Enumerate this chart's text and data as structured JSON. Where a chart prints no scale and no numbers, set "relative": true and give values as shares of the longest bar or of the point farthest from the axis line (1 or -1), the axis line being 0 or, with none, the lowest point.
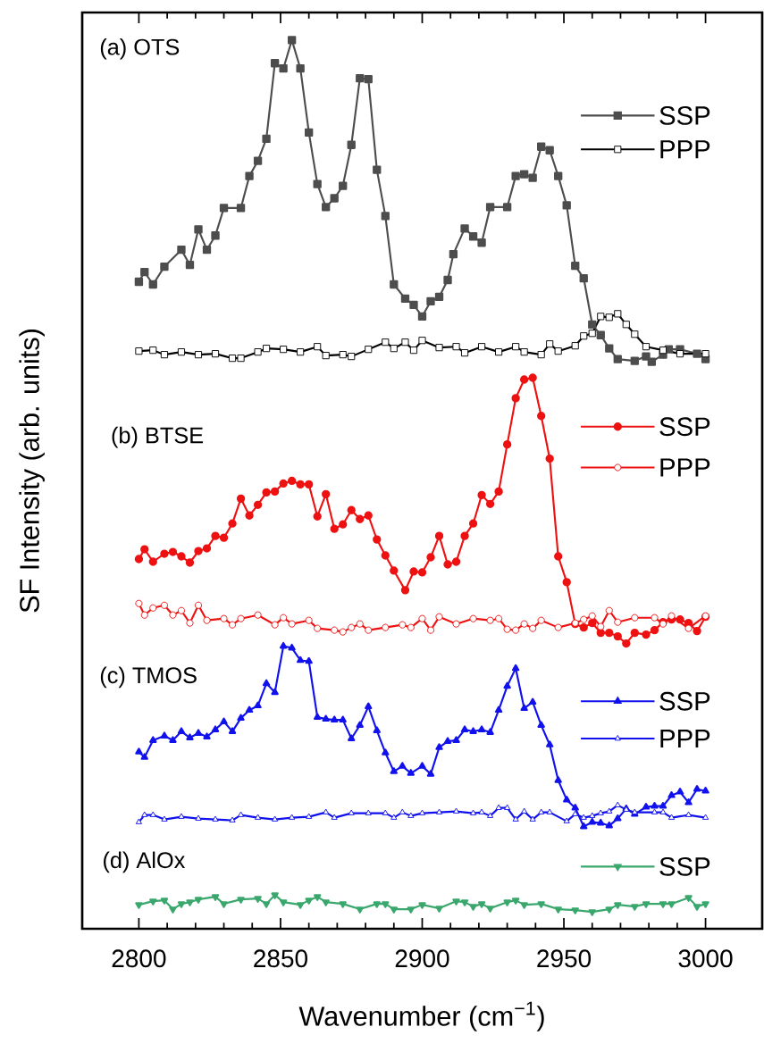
{
  "chart_data": {
    "type": "line",
    "relative": true,
    "xlabel": "Wavenumber (cm$^{−1}$)",
    "ylabel": "SF Intensity (arb. units)",
    "xlim": [
      2780,
      3020
    ],
    "xticks": [
      2800,
      2850,
      2900,
      2950,
      3000
    ],
    "legend": "right",
    "annotations": [
      "(a) OTS",
      "(b) BTSE",
      "(c) TMOS",
      "(d) AlOx"
    ],
    "series": [
      {
        "name": "SSP",
        "color": "#4d4d4d",
        "marker": "square",
        "x": [
          2800,
          2802,
          2805,
          2809,
          2815,
          2818,
          2821,
          2824,
          2827,
          2830,
          2836,
          2839,
          2842,
          2845,
          2848,
          2851,
          2854,
          2857,
          2860,
          2863,
          2866,
          2869,
          2872,
          2875,
          2878,
          2881,
          2884,
          2887,
          2890,
          2894,
          2897,
          2900,
          2903,
          2906,
          2909,
          2911,
          2915,
          2918,
          2921,
          2924,
          2930,
          2933,
          2936,
          2939,
          2942,
          2945,
          2948,
          2951,
          2954,
          2957,
          2960,
          2963,
          2966,
          2969,
          2975,
          2979,
          2981,
          2985,
          2987,
          2991,
          2997,
          3000
        ],
        "values": [
          0.728,
          0.739,
          0.725,
          0.745,
          0.764,
          0.747,
          0.787,
          0.764,
          0.78,
          0.811,
          0.811,
          0.847,
          0.864,
          0.889,
          0.974,
          0.968,
          1.0,
          0.968,
          0.896,
          0.838,
          0.812,
          0.822,
          0.836,
          0.882,
          0.957,
          0.956,
          0.854,
          0.802,
          0.725,
          0.709,
          0.702,
          0.689,
          0.706,
          0.711,
          0.73,
          0.759,
          0.788,
          0.779,
          0.772,
          0.812,
          0.812,
          0.847,
          0.849,
          0.845,
          0.88,
          0.876,
          0.847,
          0.814,
          0.746,
          0.732,
          0.68,
          0.668,
          0.653,
          0.641,
          0.639,
          0.644,
          0.638,
          0.646,
          0.652,
          0.652,
          0.647,
          0.641
        ]
      },
      {
        "name": "PPP",
        "color": "#000000",
        "marker": "square",
        "x": [
          2800,
          2805,
          2809,
          2815,
          2821,
          2827,
          2833,
          2836,
          2842,
          2845,
          2851,
          2857,
          2863,
          2866,
          2872,
          2875,
          2881,
          2887,
          2890,
          2894,
          2897,
          2900,
          2906,
          2912,
          2915,
          2921,
          2927,
          2933,
          2936,
          2942,
          2945,
          2948,
          2954,
          2957,
          2960,
          2963,
          2966,
          2969,
          2972,
          2975,
          2979,
          2985,
          2991,
          3000
        ],
        "values": [
          0.65,
          0.651,
          0.646,
          0.649,
          0.646,
          0.647,
          0.642,
          0.642,
          0.649,
          0.653,
          0.652,
          0.649,
          0.655,
          0.645,
          0.646,
          0.644,
          0.652,
          0.66,
          0.653,
          0.66,
          0.651,
          0.662,
          0.654,
          0.655,
          0.648,
          0.655,
          0.649,
          0.655,
          0.649,
          0.646,
          0.658,
          0.65,
          0.656,
          0.667,
          0.67,
          0.689,
          0.688,
          0.692,
          0.68,
          0.669,
          0.655,
          0.651,
          0.647,
          0.647
        ]
      },
      {
        "name": "SSP",
        "color": "#ee1111",
        "marker": "circle",
        "x": [
          2800,
          2802,
          2805,
          2809,
          2812,
          2815,
          2818,
          2821,
          2824,
          2827,
          2830,
          2833,
          2836,
          2839,
          2842,
          2845,
          2848,
          2851,
          2854,
          2857,
          2860,
          2863,
          2866,
          2869,
          2872,
          2875,
          2878,
          2881,
          2884,
          2887,
          2890,
          2894,
          2897,
          2900,
          2903,
          2906,
          2909,
          2912,
          2915,
          2918,
          2921,
          2924,
          2927,
          2930,
          2933,
          2936,
          2939,
          2942,
          2945,
          2948,
          2951,
          2954,
          2957,
          2960,
          2963,
          2966,
          2969,
          2972,
          2975,
          2979,
          2982,
          2985,
          2988,
          2991,
          2994,
          2997,
          3000
        ],
        "values": [
          0.416,
          0.427,
          0.413,
          0.422,
          0.424,
          0.419,
          0.412,
          0.425,
          0.428,
          0.442,
          0.44,
          0.456,
          0.484,
          0.465,
          0.477,
          0.491,
          0.492,
          0.501,
          0.504,
          0.5,
          0.5,
          0.464,
          0.489,
          0.45,
          0.455,
          0.471,
          0.461,
          0.465,
          0.438,
          0.42,
          0.403,
          0.381,
          0.402,
          0.401,
          0.418,
          0.442,
          0.41,
          0.413,
          0.442,
          0.456,
          0.488,
          0.478,
          0.492,
          0.545,
          0.597,
          0.618,
          0.62,
          0.577,
          0.529,
          0.419,
          0.39,
          0.343,
          0.339,
          0.344,
          0.333,
          0.333,
          0.329,
          0.321,
          0.333,
          0.331,
          0.336,
          0.345,
          0.348,
          0.348,
          0.344,
          0.335,
          0.351
        ]
      },
      {
        "name": "PPP",
        "color": "#ee1111",
        "marker": "circle",
        "x": [
          2800,
          2802,
          2805,
          2809,
          2812,
          2815,
          2818,
          2821,
          2824,
          2830,
          2833,
          2836,
          2842,
          2848,
          2851,
          2854,
          2860,
          2863,
          2869,
          2872,
          2875,
          2878,
          2881,
          2887,
          2893,
          2896,
          2900,
          2903,
          2906,
          2912,
          2918,
          2924,
          2927,
          2930,
          2933,
          2936,
          2939,
          2942,
          2948,
          2954,
          2957,
          2960,
          2963,
          2966,
          2969,
          2975,
          2982,
          2985,
          2988,
          2994,
          3000
        ],
        "values": [
          0.366,
          0.353,
          0.361,
          0.364,
          0.353,
          0.358,
          0.344,
          0.364,
          0.347,
          0.349,
          0.342,
          0.349,
          0.353,
          0.342,
          0.35,
          0.343,
          0.347,
          0.338,
          0.336,
          0.334,
          0.339,
          0.343,
          0.336,
          0.339,
          0.342,
          0.339,
          0.349,
          0.336,
          0.351,
          0.343,
          0.349,
          0.347,
          0.349,
          0.337,
          0.336,
          0.343,
          0.338,
          0.347,
          0.339,
          0.344,
          0.348,
          0.352,
          0.34,
          0.358,
          0.345,
          0.35,
          0.35,
          0.343,
          0.352,
          0.338,
          0.352
        ]
      },
      {
        "name": "SSP",
        "color": "#1111ee",
        "marker": "triangle",
        "x": [
          2800,
          2802,
          2805,
          2809,
          2812,
          2815,
          2818,
          2821,
          2824,
          2827,
          2830,
          2833,
          2836,
          2839,
          2842,
          2845,
          2848,
          2851,
          2854,
          2857,
          2860,
          2863,
          2866,
          2869,
          2872,
          2875,
          2878,
          2881,
          2884,
          2887,
          2890,
          2893,
          2896,
          2900,
          2903,
          2906,
          2909,
          2912,
          2915,
          2918,
          2921,
          2924,
          2927,
          2930,
          2933,
          2936,
          2939,
          2942,
          2945,
          2948,
          2951,
          2954,
          2957,
          2960,
          2963,
          2966,
          2969,
          2972,
          2975,
          2979,
          2982,
          2985,
          2988,
          2991,
          2994,
          2997,
          3000
        ],
        "values": [
          0.199,
          0.193,
          0.212,
          0.217,
          0.212,
          0.222,
          0.215,
          0.22,
          0.216,
          0.224,
          0.233,
          0.222,
          0.237,
          0.246,
          0.251,
          0.276,
          0.266,
          0.318,
          0.316,
          0.302,
          0.301,
          0.238,
          0.236,
          0.235,
          0.235,
          0.214,
          0.229,
          0.25,
          0.223,
          0.198,
          0.177,
          0.183,
          0.175,
          0.183,
          0.174,
          0.204,
          0.211,
          0.212,
          0.224,
          0.222,
          0.224,
          0.221,
          0.246,
          0.273,
          0.293,
          0.248,
          0.255,
          0.229,
          0.207,
          0.167,
          0.145,
          0.136,
          0.115,
          0.12,
          0.119,
          0.116,
          0.124,
          0.135,
          0.129,
          0.137,
          0.138,
          0.138,
          0.15,
          0.154,
          0.142,
          0.157,
          0.155
        ]
      },
      {
        "name": "PPP",
        "color": "#1111ee",
        "marker": "triangle",
        "x": [
          2800,
          2802,
          2805,
          2809,
          2815,
          2821,
          2827,
          2833,
          2836,
          2842,
          2848,
          2854,
          2860,
          2866,
          2869,
          2875,
          2881,
          2887,
          2890,
          2893,
          2896,
          2900,
          2906,
          2912,
          2918,
          2921,
          2924,
          2927,
          2930,
          2933,
          2936,
          2939,
          2942,
          2945,
          2951,
          2954,
          2957,
          2960,
          2963,
          2966,
          2969,
          2972,
          2975,
          2982,
          2985,
          2988,
          2994,
          3000
        ],
        "values": [
          0.12,
          0.128,
          0.128,
          0.123,
          0.126,
          0.124,
          0.123,
          0.122,
          0.128,
          0.125,
          0.123,
          0.125,
          0.126,
          0.131,
          0.125,
          0.13,
          0.13,
          0.13,
          0.125,
          0.131,
          0.127,
          0.13,
          0.131,
          0.132,
          0.13,
          0.131,
          0.127,
          0.136,
          0.136,
          0.123,
          0.132,
          0.123,
          0.131,
          0.131,
          0.121,
          0.129,
          0.125,
          0.127,
          0.13,
          0.132,
          0.139,
          0.134,
          0.131,
          0.131,
          0.131,
          0.125,
          0.128,
          0.125
        ]
      },
      {
        "name": "SSP",
        "color": "#3aa76d",
        "marker": "triangle",
        "x": [
          2800,
          2805,
          2809,
          2812,
          2815,
          2818,
          2821,
          2827,
          2830,
          2836,
          2842,
          2845,
          2848,
          2851,
          2857,
          2860,
          2863,
          2866,
          2872,
          2878,
          2884,
          2887,
          2890,
          2896,
          2900,
          2906,
          2912,
          2915,
          2918,
          2921,
          2924,
          2930,
          2933,
          2936,
          2942,
          2948,
          2954,
          2960,
          2966,
          2969,
          2975,
          2979,
          2985,
          2988,
          2994,
          2997,
          3000
        ],
        "values": [
          0.027,
          0.031,
          0.032,
          0.022,
          0.028,
          0.03,
          0.033,
          0.036,
          0.028,
          0.033,
          0.034,
          0.028,
          0.038,
          0.03,
          0.027,
          0.032,
          0.036,
          0.03,
          0.028,
          0.022,
          0.028,
          0.028,
          0.022,
          0.022,
          0.027,
          0.023,
          0.031,
          0.03,
          0.025,
          0.028,
          0.023,
          0.03,
          0.032,
          0.027,
          0.028,
          0.022,
          0.021,
          0.019,
          0.022,
          0.027,
          0.025,
          0.028,
          0.028,
          0.028,
          0.035,
          0.025,
          0.028
        ]
      }
    ]
  }
}
